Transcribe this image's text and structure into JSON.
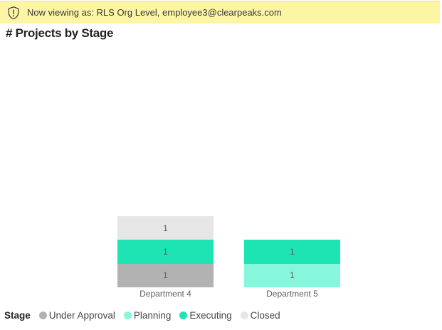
{
  "banner": {
    "icon": "shield-alert-icon",
    "text": "Now viewing as: RLS Org Level, employee3@clearpeaks.com",
    "background": "#FBF5A4"
  },
  "chart_data": {
    "type": "bar",
    "stacked": true,
    "title": "# Projects by Stage",
    "categories": [
      "Department 4",
      "Department 5"
    ],
    "series": [
      {
        "name": "Under Approval",
        "color": "#B2B2B2",
        "values": [
          1,
          0
        ]
      },
      {
        "name": "Planning",
        "color": "#86F6DD",
        "values": [
          0,
          1
        ]
      },
      {
        "name": "Executing",
        "color": "#1EE3B2",
        "values": [
          1,
          1
        ]
      },
      {
        "name": "Closed",
        "color": "#E6E6E6",
        "values": [
          1,
          0
        ]
      }
    ],
    "totals": {
      "Department 4": 3,
      "Department 5": 2
    },
    "data_labels_shown": true,
    "data_label_color": "#605E5C",
    "legend_title": "Stage",
    "legend_position": "bottom",
    "ylim": [
      0,
      3
    ],
    "y_axis_visible": false,
    "grid": false
  }
}
